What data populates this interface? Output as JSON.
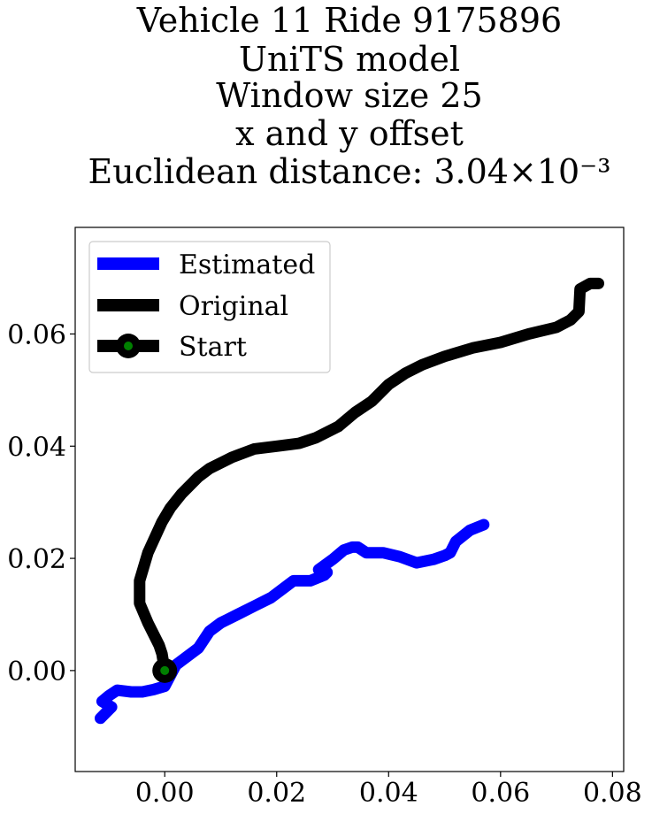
{
  "chart_data": {
    "type": "line",
    "title_lines": [
      "Vehicle 11 Ride 9175896",
      "UniTS model",
      "Window size 25",
      "x and y offset",
      "Euclidean distance: 3.04×10⁻³"
    ],
    "xlim": [
      -0.016,
      0.082
    ],
    "ylim": [
      -0.018,
      0.079
    ],
    "xticks": [
      0.0,
      0.02,
      0.04,
      0.06,
      0.08
    ],
    "xtick_labels": [
      "0.00",
      "0.02",
      "0.04",
      "0.06",
      "0.08"
    ],
    "yticks": [
      0.0,
      0.02,
      0.04,
      0.06
    ],
    "ytick_labels": [
      "0.00",
      "0.02",
      "0.04",
      "0.06"
    ],
    "grid": false,
    "legend_position": "upper-left",
    "series": [
      {
        "name": "Estimated",
        "color": "#0000ff",
        "points": [
          [
            -0.0115,
            -0.0085
          ],
          [
            -0.0105,
            -0.0075
          ],
          [
            -0.0095,
            -0.0065
          ],
          [
            -0.0112,
            -0.0055
          ],
          [
            -0.01,
            -0.0045
          ],
          [
            -0.0085,
            -0.0035
          ],
          [
            -0.006,
            -0.0038
          ],
          [
            -0.004,
            -0.0038
          ],
          [
            -0.002,
            -0.0034
          ],
          [
            0.0,
            -0.0028
          ],
          [
            0.002,
            0.001
          ],
          [
            0.006,
            0.004
          ],
          [
            0.008,
            0.007
          ],
          [
            0.01,
            0.0085
          ],
          [
            0.013,
            0.01
          ],
          [
            0.016,
            0.0115
          ],
          [
            0.019,
            0.013
          ],
          [
            0.021,
            0.0145
          ],
          [
            0.023,
            0.016
          ],
          [
            0.026,
            0.016
          ],
          [
            0.0285,
            0.017
          ],
          [
            0.029,
            0.0175
          ],
          [
            0.0275,
            0.018
          ],
          [
            0.03,
            0.0198
          ],
          [
            0.032,
            0.0215
          ],
          [
            0.0335,
            0.022
          ],
          [
            0.0345,
            0.022
          ],
          [
            0.036,
            0.021
          ],
          [
            0.039,
            0.021
          ],
          [
            0.042,
            0.0203
          ],
          [
            0.045,
            0.0192
          ],
          [
            0.048,
            0.0198
          ],
          [
            0.05,
            0.0205
          ],
          [
            0.051,
            0.021
          ],
          [
            0.052,
            0.023
          ],
          [
            0.0545,
            0.025
          ],
          [
            0.057,
            0.026
          ]
        ]
      },
      {
        "name": "Original",
        "color": "#000000",
        "points": [
          [
            0.0,
            0.0
          ],
          [
            -0.0005,
            0.003
          ],
          [
            -0.001,
            0.0045
          ],
          [
            -0.003,
            0.0085
          ],
          [
            -0.0045,
            0.012
          ],
          [
            -0.0045,
            0.016
          ],
          [
            -0.003,
            0.021
          ],
          [
            -0.0005,
            0.0265
          ],
          [
            0.001,
            0.029
          ],
          [
            0.003,
            0.0315
          ],
          [
            0.006,
            0.0345
          ],
          [
            0.008,
            0.036
          ],
          [
            0.012,
            0.038
          ],
          [
            0.016,
            0.0395
          ],
          [
            0.02,
            0.04
          ],
          [
            0.024,
            0.0405
          ],
          [
            0.027,
            0.0415
          ],
          [
            0.031,
            0.0435
          ],
          [
            0.034,
            0.046
          ],
          [
            0.037,
            0.048
          ],
          [
            0.04,
            0.051
          ],
          [
            0.043,
            0.053
          ],
          [
            0.046,
            0.0545
          ],
          [
            0.05,
            0.056
          ],
          [
            0.055,
            0.0575
          ],
          [
            0.06,
            0.0585
          ],
          [
            0.065,
            0.06
          ],
          [
            0.07,
            0.0612
          ],
          [
            0.0725,
            0.0625
          ],
          [
            0.074,
            0.064
          ],
          [
            0.0742,
            0.068
          ],
          [
            0.076,
            0.069
          ],
          [
            0.0775,
            0.069
          ]
        ]
      },
      {
        "name": "Start",
        "color": "#000000",
        "marker_face": "#008000",
        "points": [
          [
            0.0,
            0.0
          ]
        ]
      }
    ]
  }
}
